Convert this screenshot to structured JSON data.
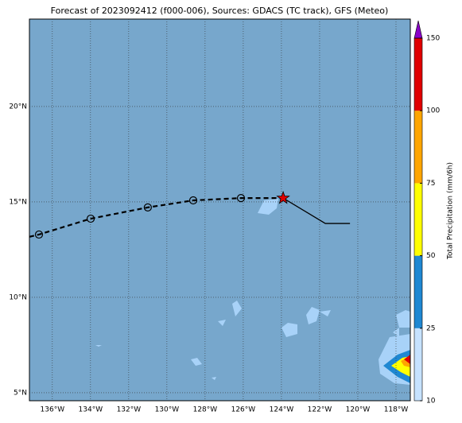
{
  "chart_data": {
    "type": "map",
    "title": "Forecast of 2023092412 (f000-006), Sources: GDACS (TC track), GFS (Meteo)",
    "xlim": [
      -137.2,
      -117.25
    ],
    "ylim": [
      4.58,
      24.58
    ],
    "xticks": [
      {
        "value": -136,
        "label": "136°W"
      },
      {
        "value": -134,
        "label": "134°W"
      },
      {
        "value": -132,
        "label": "132°W"
      },
      {
        "value": -130,
        "label": "130°W"
      },
      {
        "value": -128,
        "label": "128°W"
      },
      {
        "value": -126,
        "label": "126°W"
      },
      {
        "value": -124,
        "label": "124°W"
      },
      {
        "value": -122,
        "label": "122°W"
      },
      {
        "value": -120,
        "label": "120°W"
      },
      {
        "value": -118,
        "label": "118°W"
      }
    ],
    "yticks": [
      {
        "value": 5,
        "label": "5°N"
      },
      {
        "value": 10,
        "label": "10°N"
      },
      {
        "value": 15,
        "label": "15°N"
      },
      {
        "value": 20,
        "label": "20°N"
      }
    ],
    "grid": true,
    "track": {
      "forecast": {
        "lon": [
          -137.2,
          -136.7,
          -133.99,
          -131.0,
          -128.62,
          -126.12,
          -123.91
        ],
        "lat": [
          13.17,
          13.29,
          14.12,
          14.71,
          15.08,
          15.2,
          15.2
        ]
      },
      "observed": {
        "lon": [
          -123.91,
          -121.7,
          -120.41
        ],
        "lat": [
          15.2,
          13.87,
          13.87
        ]
      },
      "current": {
        "lon": -123.91,
        "lat": 15.2
      }
    },
    "colorbar": {
      "label": "Total Precipitation (mm/6h)",
      "levels": [
        10,
        25,
        50,
        75,
        100,
        150
      ],
      "colors": [
        "#c6e2ff",
        "#1f88d2",
        "#ffff00",
        "#ffa500",
        "#e00000"
      ],
      "extend_color": "#8a00c8"
    }
  }
}
